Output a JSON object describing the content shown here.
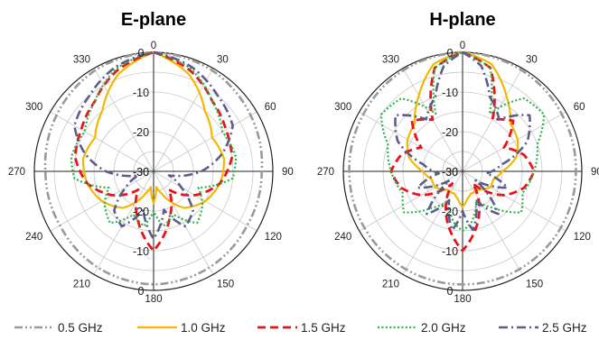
{
  "chart_data": [
    {
      "type": "polar-line",
      "title": "E-plane",
      "angle_ticks": [
        0,
        30,
        60,
        90,
        120,
        150,
        180,
        210,
        240,
        270,
        300,
        330
      ],
      "radial_tick_labels": [
        "0",
        "-10",
        "-20",
        "-30"
      ],
      "radial_range_db": [
        -30,
        0
      ],
      "angle_unit": "deg",
      "series": [
        {
          "name": "0.5 GHz",
          "color": "#9a9a9a",
          "dash": "dashdotdot",
          "theta": [
            0,
            30,
            60,
            90,
            120,
            150,
            180,
            210,
            240,
            270,
            300,
            330,
            360
          ],
          "r": [
            0,
            -0.6,
            -1.8,
            -2.8,
            -2.8,
            -2,
            -1.5,
            -2,
            -2.8,
            -2.8,
            -1.8,
            -0.6,
            0
          ]
        },
        {
          "name": "1.0 GHz",
          "color": "#f2b800",
          "dash": "solid",
          "theta": [
            0,
            20,
            40,
            60,
            80,
            100,
            120,
            140,
            160,
            170,
            180,
            190,
            200,
            220,
            240,
            260,
            280,
            300,
            320,
            340,
            360
          ],
          "r": [
            0,
            -4,
            -10,
            -13,
            -12,
            -13,
            -15,
            -18,
            -24,
            -26,
            -22,
            -26,
            -24,
            -18,
            -15,
            -13,
            -12,
            -13,
            -10,
            -4,
            0
          ]
        },
        {
          "name": "1.5 GHz",
          "color": "#e8141c",
          "dash": "dashed",
          "theta": [
            0,
            20,
            40,
            60,
            80,
            100,
            120,
            140,
            160,
            170,
            180,
            190,
            200,
            220,
            240,
            260,
            280,
            300,
            320,
            340,
            360
          ],
          "r": [
            0,
            -3,
            -7,
            -9,
            -10,
            -13,
            -18,
            -24,
            -18,
            -14,
            -10,
            -14,
            -18,
            -24,
            -18,
            -13,
            -10,
            -9,
            -7,
            -3,
            0
          ]
        },
        {
          "name": "2.0 GHz",
          "color": "#2cb34a",
          "dash": "dotted",
          "theta": [
            0,
            20,
            40,
            60,
            80,
            95,
            110,
            125,
            140,
            155,
            170,
            180,
            190,
            205,
            220,
            235,
            250,
            265,
            280,
            300,
            320,
            340,
            360
          ],
          "r": [
            0,
            -2.5,
            -7,
            -10,
            -9,
            -10,
            -18,
            -15,
            -13,
            -18,
            -16,
            -20,
            -16,
            -18,
            -13,
            -15,
            -18,
            -10,
            -9,
            -10,
            -7,
            -2.5,
            0
          ]
        },
        {
          "name": "2.5 GHz",
          "color": "#5b5e8a",
          "dash": "dashdot",
          "theta": [
            0,
            20,
            40,
            60,
            75,
            90,
            105,
            120,
            135,
            150,
            165,
            180,
            195,
            210,
            225,
            240,
            255,
            270,
            285,
            300,
            320,
            340,
            360
          ],
          "r": [
            0,
            -2,
            -5,
            -7,
            -12,
            -18,
            -26,
            -22,
            -16,
            -14,
            -20,
            -13,
            -20,
            -14,
            -16,
            -22,
            -26,
            -18,
            -12,
            -7,
            -5,
            -2,
            0
          ]
        }
      ]
    },
    {
      "type": "polar-line",
      "title": "H-plane",
      "angle_ticks": [
        0,
        30,
        60,
        90,
        120,
        150,
        180,
        210,
        240,
        270,
        300,
        330
      ],
      "radial_tick_labels": [
        "0",
        "-10",
        "-20",
        "-30"
      ],
      "radial_range_db": [
        -30,
        0
      ],
      "angle_unit": "deg",
      "series": [
        {
          "name": "0.5 GHz",
          "color": "#9a9a9a",
          "dash": "dashdotdot",
          "theta": [
            0,
            30,
            60,
            90,
            120,
            150,
            180,
            210,
            240,
            270,
            300,
            330,
            360
          ],
          "r": [
            0,
            -0.5,
            -1.2,
            -1.5,
            -1.5,
            -1.5,
            -1.5,
            -1.5,
            -1.5,
            -1.5,
            -1.2,
            -0.5,
            0
          ]
        },
        {
          "name": "1.0 GHz",
          "color": "#f2b800",
          "dash": "solid",
          "theta": [
            0,
            15,
            30,
            45,
            60,
            75,
            90,
            105,
            120,
            140,
            160,
            170,
            180,
            190,
            200,
            220,
            240,
            255,
            270,
            285,
            300,
            315,
            330,
            345,
            360
          ],
          "r": [
            0,
            -2,
            -8,
            -13,
            -14,
            -16,
            -20,
            -22,
            -22,
            -24,
            -24,
            -23,
            -21,
            -23,
            -24,
            -24,
            -22,
            -22,
            -20,
            -16,
            -14,
            -13,
            -8,
            -2,
            0
          ]
        },
        {
          "name": "1.5 GHz",
          "color": "#e8141c",
          "dash": "dashed",
          "theta": [
            0,
            15,
            30,
            45,
            60,
            75,
            90,
            105,
            120,
            140,
            160,
            170,
            180,
            190,
            200,
            220,
            240,
            255,
            270,
            285,
            300,
            315,
            330,
            345,
            360
          ],
          "r": [
            0,
            -3,
            -15,
            -12,
            -18,
            -14,
            -12,
            -14,
            -18,
            -26,
            -18,
            -14,
            -10,
            -14,
            -18,
            -26,
            -18,
            -14,
            -12,
            -14,
            -18,
            -12,
            -15,
            -3,
            0
          ]
        },
        {
          "name": "2.0 GHz",
          "color": "#2cb34a",
          "dash": "dotted",
          "theta": [
            0,
            15,
            25,
            40,
            55,
            70,
            90,
            110,
            125,
            140,
            155,
            170,
            180,
            190,
            205,
            220,
            235,
            250,
            270,
            290,
            305,
            320,
            335,
            345,
            360
          ],
          "r": [
            0,
            -3,
            -14,
            -6,
            -5,
            -10,
            -12,
            -14,
            -12,
            -18,
            -22,
            -17,
            -15,
            -17,
            -22,
            -18,
            -12,
            -14,
            -12,
            -10,
            -5,
            -6,
            -14,
            -3,
            0
          ]
        },
        {
          "name": "2.5 GHz",
          "color": "#5b5e8a",
          "dash": "dashdot",
          "theta": [
            0,
            10,
            20,
            35,
            50,
            65,
            80,
            95,
            110,
            125,
            140,
            155,
            170,
            180,
            190,
            205,
            220,
            235,
            250,
            265,
            280,
            295,
            310,
            325,
            340,
            350,
            360
          ],
          "r": [
            0,
            -3,
            -10,
            -14,
            -8,
            -12,
            -20,
            -24,
            -18,
            -26,
            -16,
            -22,
            -15,
            -20,
            -15,
            -22,
            -16,
            -26,
            -18,
            -24,
            -20,
            -12,
            -8,
            -14,
            -10,
            -3,
            0
          ]
        }
      ]
    }
  ],
  "legend": {
    "placement": "bottom",
    "items": [
      {
        "label": "0.5 GHz",
        "color": "#9a9a9a",
        "dash": "dashdotdot"
      },
      {
        "label": "1.0 GHz",
        "color": "#f2b800",
        "dash": "solid"
      },
      {
        "label": "1.5 GHz",
        "color": "#e8141c",
        "dash": "dashed"
      },
      {
        "label": "2.0 GHz",
        "color": "#2cb34a",
        "dash": "dotted"
      },
      {
        "label": "2.5 GHz",
        "color": "#5b5e8a",
        "dash": "dashdot"
      }
    ]
  }
}
